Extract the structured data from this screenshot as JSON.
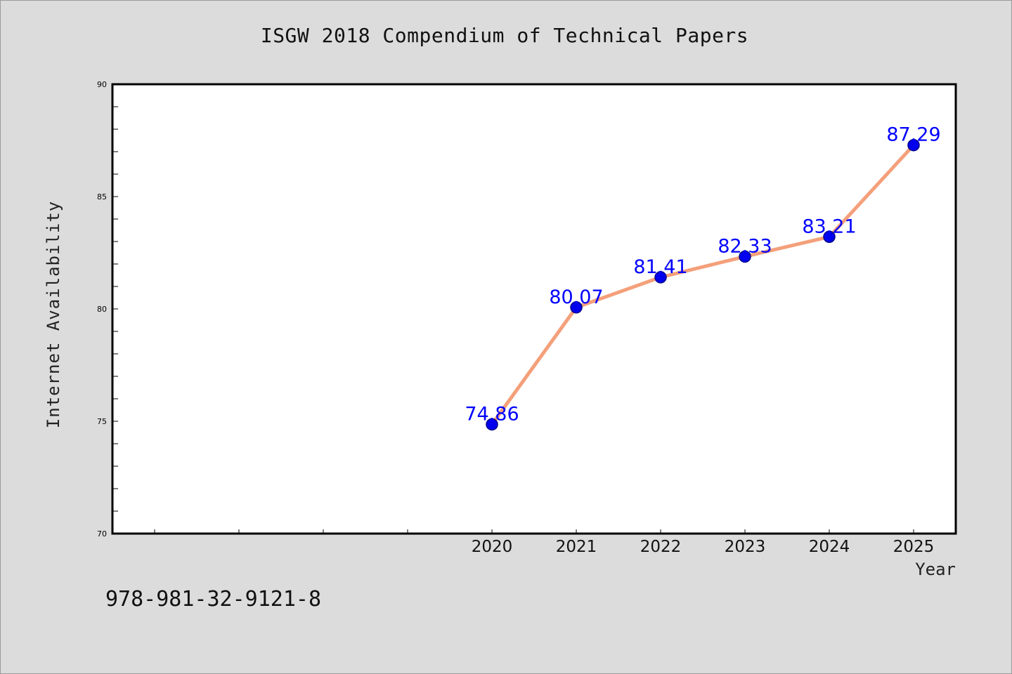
{
  "chart_data": {
    "type": "line",
    "title": "ISGW 2018 Compendium of Technical Papers",
    "xlabel": "Year",
    "ylabel": "Internet Availability",
    "x": [
      "2020",
      "2021",
      "2022",
      "2023",
      "2024",
      "2025"
    ],
    "series": [
      {
        "values": [
          74.86,
          80.07,
          81.41,
          82.33,
          83.21,
          87.29
        ]
      }
    ],
    "data_labels": [
      "74.86",
      "80.07",
      "81.41",
      "82.33",
      "83.21",
      "87.29"
    ],
    "ylim": [
      70,
      90
    ],
    "yticks": [
      70,
      75,
      80,
      85,
      90
    ],
    "xlim_index": [
      -4.5,
      5.5
    ],
    "grid": false,
    "colors": {
      "line": "#f4a07a",
      "marker": "#0000ee",
      "marker_edge": "#00008b",
      "data_label": "#0000ff",
      "plot_bg": "#ffffff",
      "page_bg": "#dcdcdc"
    }
  },
  "footer": {
    "isbn": "978-981-32-9121-8"
  }
}
